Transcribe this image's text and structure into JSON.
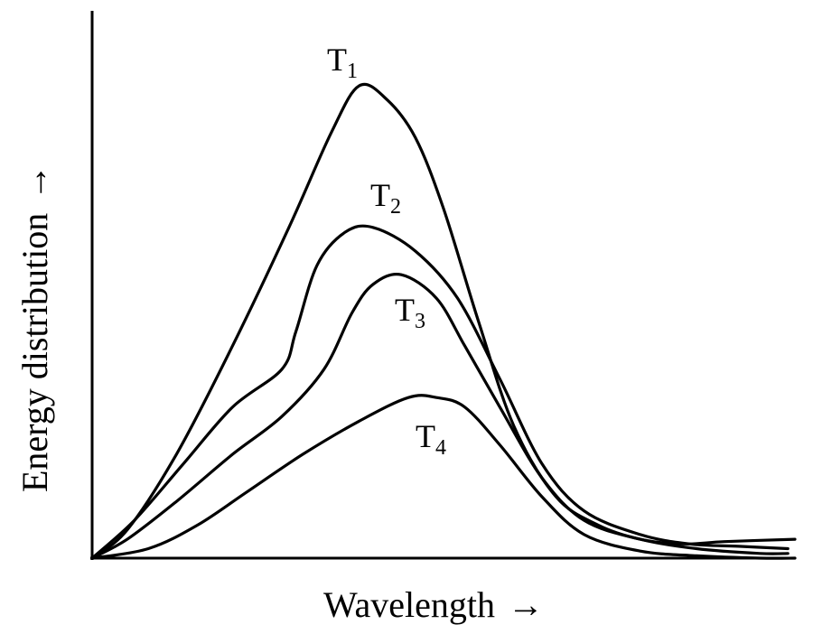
{
  "chart_data": {
    "type": "line",
    "title": "",
    "xlabel": "Wavelength",
    "ylabel": "Energy distribution",
    "x_arrow": "→",
    "y_arrow": "→",
    "grid": false,
    "legend": "none",
    "xlim": [
      0,
      100
    ],
    "ylim": [
      0,
      100
    ],
    "series": [
      {
        "name": "T1",
        "label_main": "T",
        "label_sub": "1",
        "x": [
          0,
          5,
          12,
          20,
          28,
          34,
          38,
          42,
          46,
          50,
          55,
          60,
          66,
          72,
          78,
          84,
          90,
          100
        ],
        "y": [
          0,
          6,
          22,
          45,
          70,
          90,
          100,
          97,
          89,
          74,
          50,
          28,
          13,
          7,
          4,
          3,
          3.5,
          4
        ]
      },
      {
        "name": "T2",
        "label_main": "T",
        "label_sub": "2",
        "x": [
          0,
          6,
          13,
          20,
          27,
          29,
          32,
          36,
          40,
          46,
          52,
          58,
          64,
          70,
          78,
          85,
          92,
          99
        ],
        "y": [
          0,
          8,
          20,
          32,
          40,
          48,
          62,
          69,
          70,
          65,
          55,
          38,
          20,
          10,
          5,
          3,
          2.5,
          2
        ]
      },
      {
        "name": "T3",
        "label_main": "T",
        "label_sub": "3",
        "x": [
          0,
          5,
          12,
          20,
          27,
          33,
          37,
          40,
          44,
          49,
          53,
          58,
          64,
          70,
          78,
          86,
          95,
          99
        ],
        "y": [
          0,
          4,
          12,
          22,
          30,
          40,
          52,
          58,
          60,
          55,
          45,
          32,
          17,
          8,
          4,
          2,
          1,
          1
        ]
      },
      {
        "name": "T4",
        "label_main": "T",
        "label_sub": "4",
        "x": [
          0,
          8,
          15,
          22,
          30,
          38,
          45,
          49,
          53,
          58,
          64,
          70,
          78,
          86,
          95,
          100
        ],
        "y": [
          0,
          2,
          7,
          14,
          22,
          29,
          34,
          34,
          32,
          24,
          13,
          5,
          1.5,
          0.5,
          0,
          0
        ]
      }
    ]
  }
}
